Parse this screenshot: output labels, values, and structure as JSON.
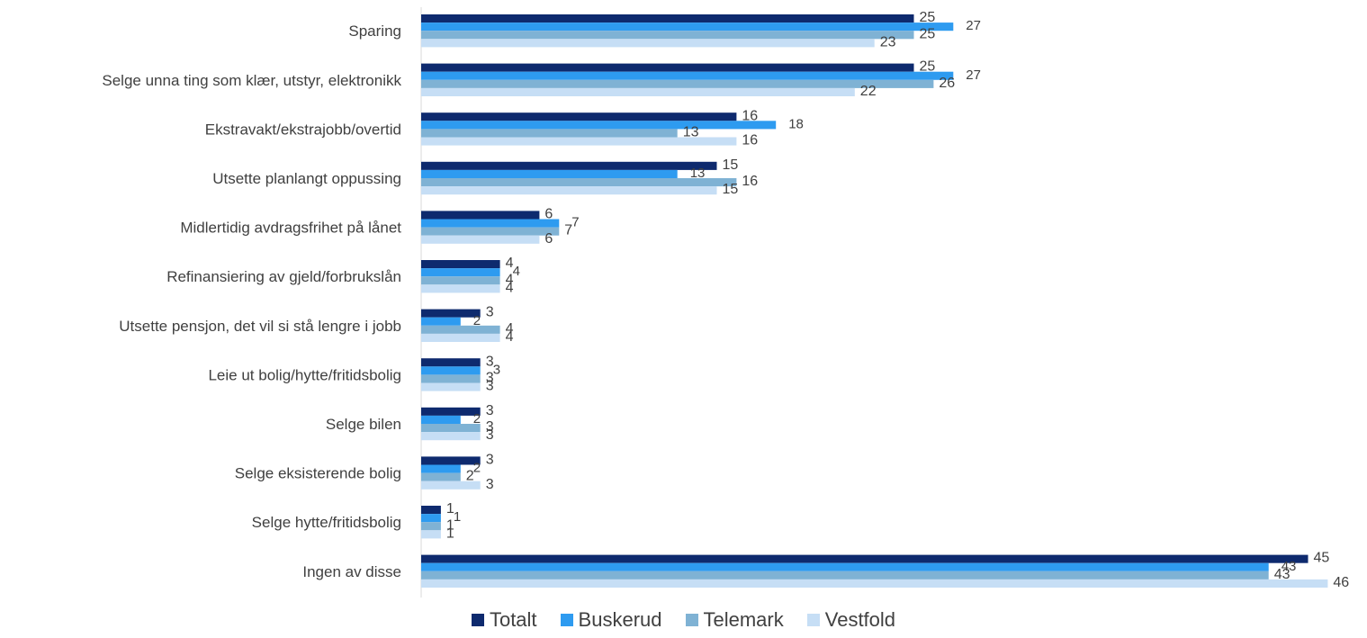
{
  "chart_data": {
    "type": "bar",
    "orientation": "horizontal",
    "categories": [
      "Sparing",
      "Selge unna ting som klær, utstyr, elektronikk",
      "Ekstravakt/ekstrajobb/overtid",
      "Utsette planlangt oppussing",
      "Midlertidig avdragsfrihet på lånet",
      "Refinansiering av gjeld/forbrukslån",
      "Utsette pensjon, det vil si stå lengre i jobb",
      "Leie ut bolig/hytte/fritidsbolig",
      "Selge bilen",
      "Selge eksisterende bolig",
      "Selge hytte/fritidsbolig",
      "Ingen av disse"
    ],
    "series": [
      {
        "name": "Totalt",
        "color": "#0e2a6e",
        "values": [
          25,
          25,
          16,
          15,
          6,
          4,
          3,
          3,
          3,
          3,
          1,
          45
        ]
      },
      {
        "name": "Buskerud",
        "color": "#2e9bf0",
        "values": [
          27,
          27,
          18,
          13,
          7,
          4,
          2,
          3,
          2,
          2,
          1,
          43
        ]
      },
      {
        "name": "Telemark",
        "color": "#7fb2d4",
        "values": [
          25,
          26,
          13,
          16,
          7,
          4,
          4,
          3,
          3,
          2,
          1,
          43
        ]
      },
      {
        "name": "Vestfold",
        "color": "#c6def5",
        "values": [
          23,
          22,
          16,
          15,
          6,
          4,
          4,
          3,
          3,
          3,
          1,
          46
        ]
      }
    ],
    "xlim": [
      0,
      48
    ],
    "grid": false,
    "legend_position": "bottom"
  }
}
